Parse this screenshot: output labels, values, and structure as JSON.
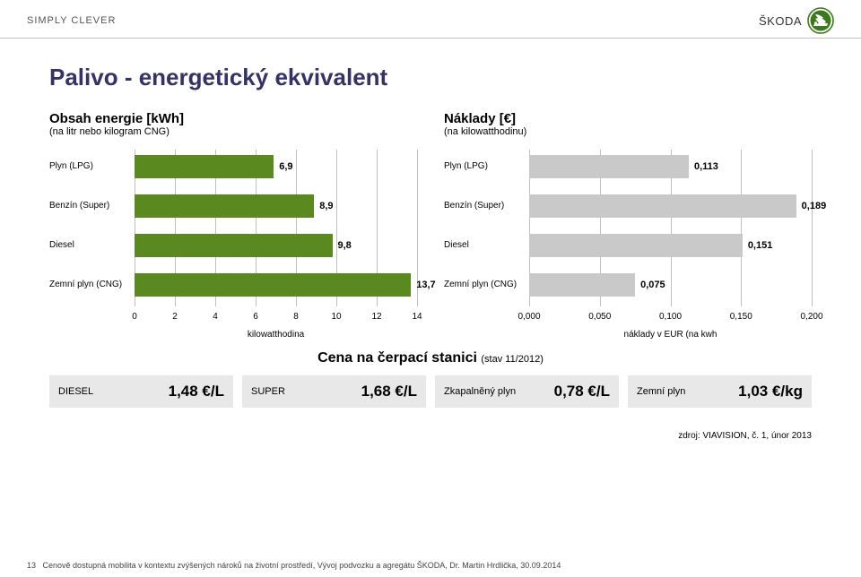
{
  "header": {
    "tagline": "SIMPLY CLEVER",
    "brand": "ŠKODA"
  },
  "title": "Palivo - energetický ekvivalent",
  "left_chart": {
    "type": "bar-horizontal",
    "title": "Obsah energie [kWh]",
    "subtitle": "(na litr nebo kilogram CNG)",
    "xmin": 0,
    "xmax": 14,
    "xtick_step": 2,
    "xticks": [
      "0",
      "2",
      "4",
      "6",
      "8",
      "10",
      "12",
      "14"
    ],
    "xaxis_label": "kilowatthodina",
    "bar_color": "#5a8a1f",
    "grid_color": "#bfbfbf",
    "label_fontsize": 10,
    "value_fontsize": 11,
    "rows": [
      {
        "label": "Plyn (LPG)",
        "value": 6.9,
        "display": "6,9"
      },
      {
        "label": "Benzín (Super)",
        "value": 8.9,
        "display": "8,9"
      },
      {
        "label": "Diesel",
        "value": 9.8,
        "display": "9,8"
      },
      {
        "label": "Zemní plyn (CNG)",
        "value": 13.7,
        "display": "13,7"
      }
    ]
  },
  "right_chart": {
    "type": "bar-horizontal",
    "title": "Náklady [€]",
    "subtitle": "(na kilowatthodinu)",
    "xmin": 0,
    "xmax": 0.2,
    "xtick_step": 0.05,
    "xticks": [
      "0,000",
      "0,050",
      "0,100",
      "0,150",
      "0,200"
    ],
    "xaxis_label": "náklady v EUR (na kwh",
    "bar_color": "#c9c9c9",
    "grid_color": "#bfbfbf",
    "label_fontsize": 10,
    "value_fontsize": 11,
    "rows": [
      {
        "label": "Plyn (LPG)",
        "value": 0.113,
        "display": "0,113"
      },
      {
        "label": "Benzín (Super)",
        "value": 0.189,
        "display": "0,189"
      },
      {
        "label": "Diesel",
        "value": 0.151,
        "display": "0,151"
      },
      {
        "label": "Zemní plyn (CNG)",
        "value": 0.075,
        "display": "0,075"
      }
    ]
  },
  "prices": {
    "title": "Cena na čerpací stanici",
    "subtitle": "(stav 11/2012)",
    "box_bg": "#e8e8e8",
    "items": [
      {
        "label": "DIESEL",
        "value": "1,48 €/L"
      },
      {
        "label": "SUPER",
        "value": "1,68 €/L"
      },
      {
        "label": "Zkapalněný plyn",
        "value": "0,78 €/L"
      },
      {
        "label": "Zemní plyn",
        "value": "1,03 €/kg"
      }
    ]
  },
  "source": "zdroj: VIAVISION, č. 1, únor 2013",
  "footer": {
    "page": "13",
    "text": "Cenově dostupná mobilita v kontextu zvýšených nároků na životní prostředí, Vývoj podvozku a agregátu ŠKODA, Dr. Martin Hrdlička, 30.09.2014"
  }
}
